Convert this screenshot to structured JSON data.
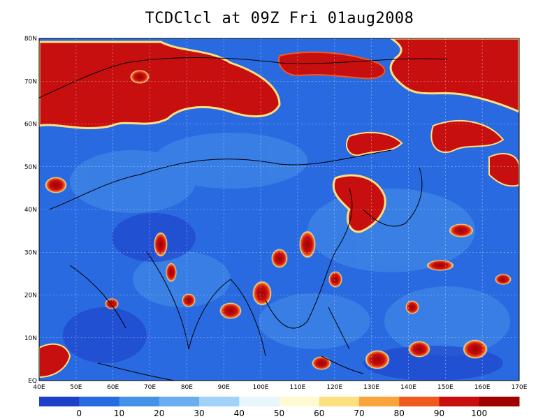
{
  "title": "TCDClcl at 09Z Fri 01aug2008",
  "map": {
    "lon_labels": [
      "40E",
      "50E",
      "60E",
      "70E",
      "80E",
      "90E",
      "100E",
      "110E",
      "120E",
      "130E",
      "140E",
      "150E",
      "160E",
      "170E"
    ],
    "lat_labels": [
      "EQ",
      "10N",
      "20N",
      "30N",
      "40N",
      "50N",
      "60N",
      "70N",
      "80N"
    ],
    "lon_range": [
      40,
      170
    ],
    "lat_range": [
      0,
      80
    ],
    "grid_lines": "dotted"
  },
  "colorbar": {
    "labels": [
      "0",
      "10",
      "20",
      "30",
      "40",
      "50",
      "60",
      "70",
      "80",
      "90",
      "100"
    ],
    "colors": [
      "#1e3fc8",
      "#2a6ae0",
      "#4590e8",
      "#6aaef0",
      "#a0d2fa",
      "#e6f6fc",
      "#fffad2",
      "#fce080",
      "#faa43c",
      "#f05a1e",
      "#c80f0f",
      "#a00000"
    ]
  },
  "colors": {
    "background_field": "#2a6ae0",
    "cloud_high": "#c80f0f",
    "coast_line": "#000000"
  }
}
